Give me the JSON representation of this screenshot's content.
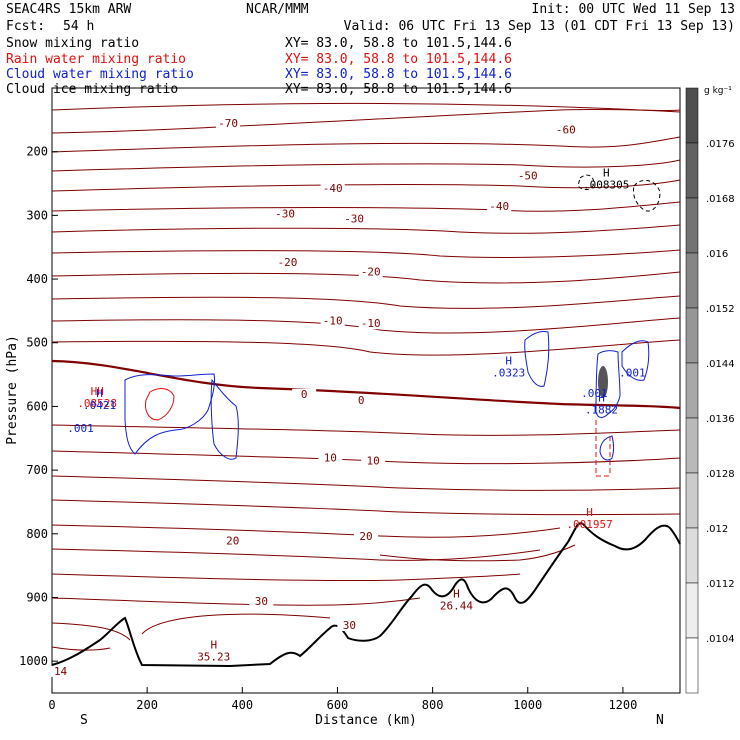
{
  "header": {
    "model": "SEAC4RS 15km ARW",
    "fcst_label": "Fcst:",
    "fcst_value": "54 h",
    "center": "NCAR/MMM",
    "init": "Init: 00 UTC Wed 11 Sep 13",
    "valid": "Valid: 06 UTC Fri 13 Sep 13 (01 CDT Fri 13 Sep 13)"
  },
  "fields": [
    {
      "name": "Snow mixing ratio",
      "xy": "XY=  83.0, 58.8 to 101.5,144.6",
      "color": "#000000"
    },
    {
      "name": "Rain water mixing ratio",
      "xy": "XY=  83.0, 58.8 to 101.5,144.6",
      "color": "#e01010"
    },
    {
      "name": "Cloud water mixing ratio",
      "xy": "XY=  83.0, 58.8 to 101.5,144.6",
      "color": "#1020d0"
    },
    {
      "name": "Cloud ice mixing ratio",
      "xy": "XY=  83.0, 58.8 to 101.5,144.6",
      "color": "#000000"
    }
  ],
  "chart_data": {
    "type": "contour cross-section",
    "xlabel": "Distance (km)",
    "ylabel": "Pressure (hPa)",
    "xlim": [
      0,
      1320
    ],
    "ylim": [
      100,
      1050
    ],
    "xticks": [
      0,
      200,
      400,
      600,
      800,
      1000,
      1200
    ],
    "yticks": [
      200,
      300,
      400,
      500,
      600,
      700,
      800,
      900,
      1000
    ],
    "x_end_labels": {
      "left": "S",
      "right": "N"
    },
    "colorbar": {
      "unit": "g kg⁻¹",
      "ticks": [
        ".0176",
        ".0168",
        ".016",
        ".0152",
        ".0144",
        ".0136",
        ".0128",
        ".012",
        ".0112",
        ".0104"
      ]
    },
    "temperature_contour_labels": [
      {
        "x": 370,
        "p": 160,
        "text": "-70"
      },
      {
        "x": 1080,
        "p": 170,
        "text": "-60"
      },
      {
        "x": 1000,
        "p": 242,
        "text": "-50"
      },
      {
        "x": 590,
        "p": 262,
        "text": "-40"
      },
      {
        "x": 940,
        "p": 290,
        "text": "-40"
      },
      {
        "x": 490,
        "p": 302,
        "text": "-30"
      },
      {
        "x": 635,
        "p": 310,
        "text": "-30"
      },
      {
        "x": 495,
        "p": 378,
        "text": "-20"
      },
      {
        "x": 670,
        "p": 393,
        "text": "-20"
      },
      {
        "x": 590,
        "p": 470,
        "text": "-10"
      },
      {
        "x": 670,
        "p": 474,
        "text": "-10"
      },
      {
        "x": 530,
        "p": 585,
        "text": "0"
      },
      {
        "x": 650,
        "p": 595,
        "text": "0"
      },
      {
        "x": 585,
        "p": 685,
        "text": "10"
      },
      {
        "x": 675,
        "p": 690,
        "text": "10"
      },
      {
        "x": 380,
        "p": 815,
        "text": "20"
      },
      {
        "x": 660,
        "p": 808,
        "text": "20"
      },
      {
        "x": 440,
        "p": 910,
        "text": "30"
      },
      {
        "x": 625,
        "p": 948,
        "text": "30"
      },
      {
        "x": 18,
        "p": 1020,
        "text": "14"
      }
    ],
    "extrema": [
      {
        "x": 340,
        "p": 996,
        "h": "H",
        "value": "35.23",
        "color": "#800000"
      },
      {
        "x": 850,
        "p": 916,
        "h": "H",
        "value": "26.44",
        "color": "#800000"
      },
      {
        "x": 1130,
        "p": 788,
        "h": "H",
        "value": ".001957",
        "color": "#e01010"
      },
      {
        "x": 1165,
        "p": 255,
        "h": "H",
        "value": ".008305",
        "color": "#000000"
      },
      {
        "x": 95,
        "p": 598,
        "h": "HH",
        "value": ".08528",
        "color": "#e01010"
      },
      {
        "x": 100,
        "p": 601,
        "h": "H",
        "value": ".0421",
        "color": "#1020d0"
      },
      {
        "x": 960,
        "p": 550,
        "h": "H",
        "value": ".0323",
        "color": "#1020d0"
      },
      {
        "x": 1155,
        "p": 608,
        "h": "H",
        "value": ".1882",
        "color": "#1020d0"
      }
    ],
    "small_labels": [
      {
        "x": 60,
        "p": 640,
        "text": ".001",
        "color": "#1020d0"
      },
      {
        "x": 1140,
        "p": 585,
        "text": ".001",
        "color": "#1020d0"
      },
      {
        "x": 1220,
        "p": 553,
        "text": ".001",
        "color": "#1020d0"
      }
    ]
  }
}
